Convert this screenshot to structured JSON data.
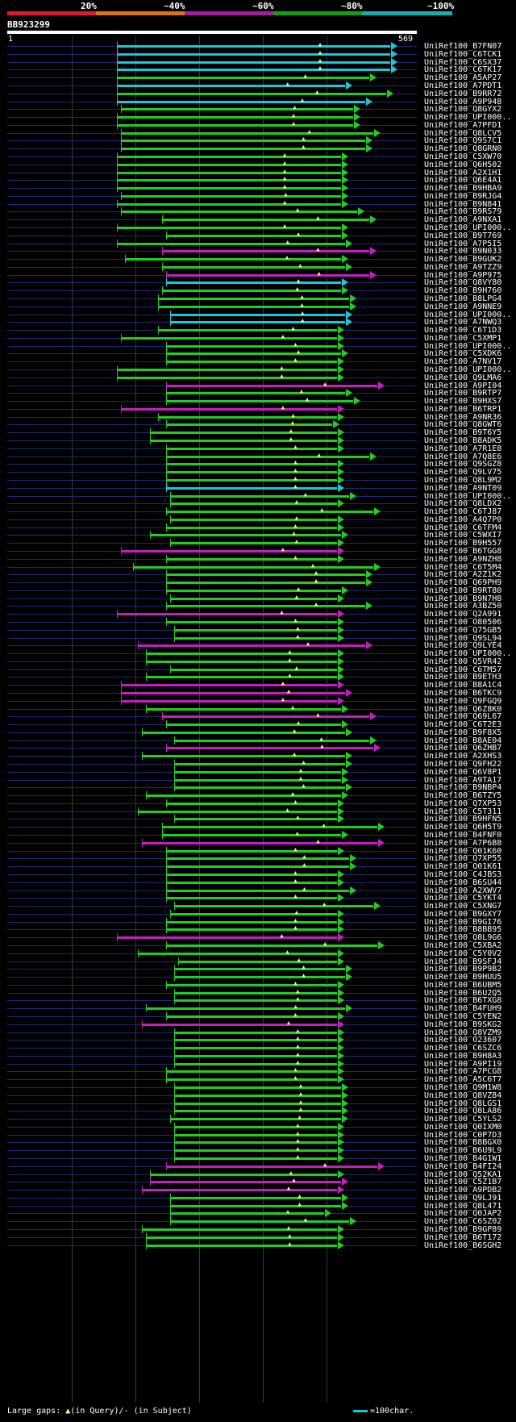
{
  "legend": {
    "labels": [
      "20%",
      "~40%",
      "~60%",
      "~80%",
      "~100%"
    ],
    "colors": [
      "#e01830",
      "#e07010",
      "#a020a0",
      "#10a010",
      "#10b0b0"
    ]
  },
  "query": {
    "name": "BB923299",
    "start": "1",
    "end": "569"
  },
  "hit_colors": {
    "cyan": "#16c8d8",
    "green": "#22cc22",
    "magenta": "#c020c0"
  },
  "hits": [
    {
      "label": "UniRef100_B7FN07",
      "color": "cyan",
      "x1": 0.27,
      "x2": 0.95
    },
    {
      "label": "UniRef100_C6TCK1",
      "color": "cyan",
      "x1": 0.27,
      "x2": 0.95
    },
    {
      "label": "UniRef100_C6SX37",
      "color": "cyan",
      "x1": 0.27,
      "x2": 0.95
    },
    {
      "label": "UniRef100_C6TK17",
      "color": "cyan",
      "x1": 0.27,
      "x2": 0.95
    },
    {
      "label": "UniRef100_A5AP27",
      "color": "green",
      "x1": 0.27,
      "x2": 0.9
    },
    {
      "label": "UniRef100_A7PDT1",
      "color": "cyan",
      "x1": 0.27,
      "x2": 0.84
    },
    {
      "label": "UniRef100_B9RR72",
      "color": "green",
      "x1": 0.27,
      "x2": 0.94
    },
    {
      "label": "UniRef100_A9P948",
      "color": "cyan",
      "x1": 0.27,
      "x2": 0.89
    },
    {
      "label": "UniRef100_Q8GYX2",
      "color": "green",
      "x1": 0.28,
      "x2": 0.86
    },
    {
      "label": "UniRef100_UPI000..",
      "color": "green",
      "x1": 0.27,
      "x2": 0.86
    },
    {
      "label": "UniRef100_A7PFD1",
      "color": "green",
      "x1": 0.27,
      "x2": 0.86
    },
    {
      "label": "UniRef100_Q8LCV5",
      "color": "green",
      "x1": 0.28,
      "x2": 0.91
    },
    {
      "label": "UniRef100_Q9S7C1",
      "color": "green",
      "x1": 0.28,
      "x2": 0.89
    },
    {
      "label": "UniRef100_Q8GRN0",
      "color": "green",
      "x1": 0.28,
      "x2": 0.89
    },
    {
      "label": "UniRef100_C5XW70",
      "color": "green",
      "x1": 0.27,
      "x2": 0.83
    },
    {
      "label": "UniRef100_Q6H502",
      "color": "green",
      "x1": 0.27,
      "x2": 0.83
    },
    {
      "label": "UniRef100_A2X1H1",
      "color": "green",
      "x1": 0.27,
      "x2": 0.83
    },
    {
      "label": "UniRef100_Q6E4A1",
      "color": "green",
      "x1": 0.27,
      "x2": 0.83
    },
    {
      "label": "UniRef100_B9HBA9",
      "color": "green",
      "x1": 0.27,
      "x2": 0.83
    },
    {
      "label": "UniRef100_B9RJG4",
      "color": "green",
      "x1": 0.28,
      "x2": 0.83
    },
    {
      "label": "UniRef100_B9N841",
      "color": "green",
      "x1": 0.27,
      "x2": 0.83
    },
    {
      "label": "UniRef100_B9RS79",
      "color": "green",
      "x1": 0.28,
      "x2": 0.87
    },
    {
      "label": "UniRef100_A9NXA1",
      "color": "green",
      "x1": 0.38,
      "x2": 0.9
    },
    {
      "label": "UniRef100_UPI000..",
      "color": "green",
      "x1": 0.27,
      "x2": 0.83
    },
    {
      "label": "UniRef100_B9T769",
      "color": "green",
      "x1": 0.39,
      "x2": 0.83
    },
    {
      "label": "UniRef100_A7P5I5",
      "color": "green",
      "x1": 0.27,
      "x2": 0.84
    },
    {
      "label": "UniRef100_B9N033",
      "color": "magenta",
      "x1": 0.38,
      "x2": 0.9
    },
    {
      "label": "UniRef100_B9GUK2",
      "color": "green",
      "x1": 0.29,
      "x2": 0.83
    },
    {
      "label": "UniRef100_A9TZZ9",
      "color": "green",
      "x1": 0.38,
      "x2": 0.84
    },
    {
      "label": "UniRef100_A9P975",
      "color": "magenta",
      "x1": 0.39,
      "x2": 0.9
    },
    {
      "label": "UniRef100_Q8VY80",
      "color": "cyan",
      "x1": 0.39,
      "x2": 0.83
    },
    {
      "label": "UniRef100_B9H760",
      "color": "green",
      "x1": 0.38,
      "x2": 0.83
    },
    {
      "label": "UniRef100_B8LPG4",
      "color": "green",
      "x1": 0.37,
      "x2": 0.85
    },
    {
      "label": "UniRef100_A9NNE9",
      "color": "green",
      "x1": 0.37,
      "x2": 0.85
    },
    {
      "label": "UniRef100_UPI000..",
      "color": "cyan",
      "x1": 0.4,
      "x2": 0.84
    },
    {
      "label": "UniRef100_A7NWQ3",
      "color": "cyan",
      "x1": 0.4,
      "x2": 0.84
    },
    {
      "label": "UniRef100_C6T1D3",
      "color": "green",
      "x1": 0.37,
      "x2": 0.82
    },
    {
      "label": "UniRef100_C5XMP1",
      "color": "green",
      "x1": 0.28,
      "x2": 0.82
    },
    {
      "label": "UniRef100_UPI000..",
      "color": "green",
      "x1": 0.39,
      "x2": 0.82
    },
    {
      "label": "UniRef100_C5XDK6",
      "color": "green",
      "x1": 0.39,
      "x2": 0.83
    },
    {
      "label": "UniRef100_A7NV17",
      "color": "green",
      "x1": 0.39,
      "x2": 0.82
    },
    {
      "label": "UniRef100_UPI000..",
      "color": "green",
      "x1": 0.27,
      "x2": 0.82
    },
    {
      "label": "UniRef100_Q9LMA6",
      "color": "green",
      "x1": 0.27,
      "x2": 0.82
    },
    {
      "label": "UniRef100_A9PI04",
      "color": "magenta",
      "x1": 0.39,
      "x2": 0.92
    },
    {
      "label": "UniRef100_B9RTP7",
      "color": "green",
      "x1": 0.39,
      "x2": 0.84
    },
    {
      "label": "UniRef100_B9HXS7",
      "color": "green",
      "x1": 0.39,
      "x2": 0.86
    },
    {
      "label": "UniRef100_B6TRP1",
      "color": "magenta",
      "x1": 0.28,
      "x2": 0.82
    },
    {
      "label": "UniRef100_A9NR36",
      "color": "green",
      "x1": 0.37,
      "x2": 0.82
    },
    {
      "label": "UniRef100_Q8GWT6",
      "color": "green",
      "x1": 0.39,
      "x2": 0.81
    },
    {
      "label": "UniRef100_B9T6Y5",
      "color": "green",
      "x1": 0.35,
      "x2": 0.82
    },
    {
      "label": "UniRef100_B8ADK5",
      "color": "green",
      "x1": 0.35,
      "x2": 0.82
    },
    {
      "label": "UniRef100_A7R1E8",
      "color": "green",
      "x1": 0.39,
      "x2": 0.82
    },
    {
      "label": "UniRef100_A7Q8E6",
      "color": "green",
      "x1": 0.39,
      "x2": 0.9
    },
    {
      "label": "UniRef100_Q9SGZ8",
      "color": "green",
      "x1": 0.39,
      "x2": 0.82
    },
    {
      "label": "UniRef100_Q9LV75",
      "color": "green",
      "x1": 0.39,
      "x2": 0.82
    },
    {
      "label": "UniRef100_Q8L9M2",
      "color": "green",
      "x1": 0.39,
      "x2": 0.82
    },
    {
      "label": "UniRef100_A9NT09",
      "color": "cyan",
      "x1": 0.39,
      "x2": 0.82
    },
    {
      "label": "UniRef100_UPI000..",
      "color": "green",
      "x1": 0.4,
      "x2": 0.85
    },
    {
      "label": "UniRef100_Q8LDX2",
      "color": "green",
      "x1": 0.4,
      "x2": 0.82
    },
    {
      "label": "UniRef100_C6TJ87",
      "color": "green",
      "x1": 0.39,
      "x2": 0.91
    },
    {
      "label": "UniRef100_A4Q7P0",
      "color": "green",
      "x1": 0.4,
      "x2": 0.82
    },
    {
      "label": "UniRef100_C6TFM4",
      "color": "green",
      "x1": 0.39,
      "x2": 0.82
    },
    {
      "label": "UniRef100_C5WXI7",
      "color": "green",
      "x1": 0.35,
      "x2": 0.83
    },
    {
      "label": "UniRef100_B9H557",
      "color": "green",
      "x1": 0.4,
      "x2": 0.82
    },
    {
      "label": "UniRef100_B6TGG8",
      "color": "magenta",
      "x1": 0.28,
      "x2": 0.82
    },
    {
      "label": "UniRef100_A9NZH8",
      "color": "green",
      "x1": 0.39,
      "x2": 0.82
    },
    {
      "label": "UniRef100_C6T5M4",
      "color": "green",
      "x1": 0.31,
      "x2": 0.91
    },
    {
      "label": "UniRef100_A2Z1K2",
      "color": "green",
      "x1": 0.39,
      "x2": 0.89
    },
    {
      "label": "UniRef100_Q69PH9",
      "color": "green",
      "x1": 0.39,
      "x2": 0.89
    },
    {
      "label": "UniRef100_B9RT80",
      "color": "green",
      "x1": 0.39,
      "x2": 0.83
    },
    {
      "label": "UniRef100_B9N7H8",
      "color": "green",
      "x1": 0.4,
      "x2": 0.82
    },
    {
      "label": "UniRef100_A3BZ50",
      "color": "green",
      "x1": 0.39,
      "x2": 0.89
    },
    {
      "label": "UniRef100_Q2A991",
      "color": "magenta",
      "x1": 0.27,
      "x2": 0.82
    },
    {
      "label": "UniRef100_O80506",
      "color": "green",
      "x1": 0.39,
      "x2": 0.82
    },
    {
      "label": "UniRef100_Q75GB5",
      "color": "green",
      "x1": 0.41,
      "x2": 0.82
    },
    {
      "label": "UniRef100_Q9SL94",
      "color": "green",
      "x1": 0.41,
      "x2": 0.82
    },
    {
      "label": "UniRef100_Q9LYE4",
      "color": "magenta",
      "x1": 0.32,
      "x2": 0.89
    },
    {
      "label": "UniRef100_UPI000..",
      "color": "green",
      "x1": 0.34,
      "x2": 0.82
    },
    {
      "label": "UniRef100_Q5VR42",
      "color": "green",
      "x1": 0.34,
      "x2": 0.82
    },
    {
      "label": "UniRef100_C6TM57",
      "color": "green",
      "x1": 0.4,
      "x2": 0.82
    },
    {
      "label": "UniRef100_B9ETH3",
      "color": "green",
      "x1": 0.34,
      "x2": 0.82
    },
    {
      "label": "UniRef100_B8A1C4",
      "color": "magenta",
      "x1": 0.28,
      "x2": 0.82
    },
    {
      "label": "UniRef100_B6TKC9",
      "color": "magenta",
      "x1": 0.28,
      "x2": 0.84
    },
    {
      "label": "UniRef100_Q9FGQ9",
      "color": "magenta",
      "x1": 0.28,
      "x2": 0.82
    },
    {
      "label": "UniRef100_Q6Z8K0",
      "color": "green",
      "x1": 0.34,
      "x2": 0.83
    },
    {
      "label": "UniRef100_Q69L67",
      "color": "magenta",
      "x1": 0.38,
      "x2": 0.9
    },
    {
      "label": "UniRef100_C6T2E3",
      "color": "green",
      "x1": 0.39,
      "x2": 0.83
    },
    {
      "label": "UniRef100_B9F8X5",
      "color": "green",
      "x1": 0.33,
      "x2": 0.84
    },
    {
      "label": "UniRef100_B8AE04",
      "color": "green",
      "x1": 0.41,
      "x2": 0.9
    },
    {
      "label": "UniRef100_Q6ZHB7",
      "color": "magenta",
      "x1": 0.39,
      "x2": 0.91
    },
    {
      "label": "UniRef100_A2XHS3",
      "color": "green",
      "x1": 0.33,
      "x2": 0.84
    },
    {
      "label": "UniRef100_Q9FH22",
      "color": "green",
      "x1": 0.41,
      "x2": 0.84
    },
    {
      "label": "UniRef100_Q6V8P1",
      "color": "green",
      "x1": 0.41,
      "x2": 0.83
    },
    {
      "label": "UniRef100_A9TA17",
      "color": "green",
      "x1": 0.41,
      "x2": 0.83
    },
    {
      "label": "UniRef100_B9NBP4",
      "color": "green",
      "x1": 0.41,
      "x2": 0.84
    },
    {
      "label": "UniRef100_B6TZY5",
      "color": "green",
      "x1": 0.34,
      "x2": 0.83
    },
    {
      "label": "UniRef100_Q7XP53",
      "color": "green",
      "x1": 0.39,
      "x2": 0.82
    },
    {
      "label": "UniRef100_C5T311",
      "color": "green",
      "x1": 0.32,
      "x2": 0.82
    },
    {
      "label": "UniRef100_B9HFN5",
      "color": "green",
      "x1": 0.41,
      "x2": 0.82
    },
    {
      "label": "UniRef100_Q6H5T9",
      "color": "green",
      "x1": 0.38,
      "x2": 0.92
    },
    {
      "label": "UniRef100_B4FNF0",
      "color": "green",
      "x1": 0.38,
      "x2": 0.83
    },
    {
      "label": "UniRef100_A7P6B8",
      "color": "magenta",
      "x1": 0.33,
      "x2": 0.92
    },
    {
      "label": "UniRef100_Q01K60",
      "color": "green",
      "x1": 0.39,
      "x2": 0.82
    },
    {
      "label": "UniRef100_Q7XP55",
      "color": "green",
      "x1": 0.39,
      "x2": 0.85
    },
    {
      "label": "UniRef100_Q01K61",
      "color": "green",
      "x1": 0.39,
      "x2": 0.85
    },
    {
      "label": "UniRef100_C4JBS3",
      "color": "green",
      "x1": 0.39,
      "x2": 0.82
    },
    {
      "label": "UniRef100_B6SU44",
      "color": "green",
      "x1": 0.39,
      "x2": 0.82
    },
    {
      "label": "UniRef100_A2XWV7",
      "color": "green",
      "x1": 0.39,
      "x2": 0.85
    },
    {
      "label": "UniRef100_C5YKT4",
      "color": "green",
      "x1": 0.39,
      "x2": 0.82
    },
    {
      "label": "UniRef100_C5XNG7",
      "color": "green",
      "x1": 0.41,
      "x2": 0.91
    },
    {
      "label": "UniRef100_B9GXY7",
      "color": "green",
      "x1": 0.4,
      "x2": 0.82
    },
    {
      "label": "UniRef100_B9GI76",
      "color": "green",
      "x1": 0.39,
      "x2": 0.82
    },
    {
      "label": "UniRef100_B8BB95",
      "color": "green",
      "x1": 0.39,
      "x2": 0.82
    },
    {
      "label": "UniRef100_Q8L9G6",
      "color": "magenta",
      "x1": 0.27,
      "x2": 0.82
    },
    {
      "label": "UniRef100_C5XBA2",
      "color": "green",
      "x1": 0.39,
      "x2": 0.92
    },
    {
      "label": "UniRef100_C5Y0V2",
      "color": "green",
      "x1": 0.32,
      "x2": 0.82
    },
    {
      "label": "UniRef100_B9SFJ4",
      "color": "green",
      "x1": 0.42,
      "x2": 0.82
    },
    {
      "label": "UniRef100_B9P9B2",
      "color": "green",
      "x1": 0.41,
      "x2": 0.84
    },
    {
      "label": "UniRef100_B9HUU5",
      "color": "green",
      "x1": 0.41,
      "x2": 0.84
    },
    {
      "label": "UniRef100_B6UBM5",
      "color": "green",
      "x1": 0.39,
      "x2": 0.82
    },
    {
      "label": "UniRef100_B6U2Q5",
      "color": "green",
      "x1": 0.41,
      "x2": 0.82
    },
    {
      "label": "UniRef100_B6TXG8",
      "color": "green",
      "x1": 0.41,
      "x2": 0.82
    },
    {
      "label": "UniRef100_B4FUH9",
      "color": "green",
      "x1": 0.34,
      "x2": 0.84
    },
    {
      "label": "UniRef100_C5YEN2",
      "color": "green",
      "x1": 0.39,
      "x2": 0.82
    },
    {
      "label": "UniRef100_B9SKG2",
      "color": "magenta",
      "x1": 0.33,
      "x2": 0.82
    },
    {
      "label": "UniRef100_Q8VZM9",
      "color": "green",
      "x1": 0.41,
      "x2": 0.82
    },
    {
      "label": "UniRef100_O23607",
      "color": "green",
      "x1": 0.41,
      "x2": 0.82
    },
    {
      "label": "UniRef100_C6SZC6",
      "color": "green",
      "x1": 0.41,
      "x2": 0.82
    },
    {
      "label": "UniRef100_B9H8A3",
      "color": "green",
      "x1": 0.41,
      "x2": 0.82
    },
    {
      "label": "UniRef100_A9PI19",
      "color": "green",
      "x1": 0.41,
      "x2": 0.82
    },
    {
      "label": "UniRef100_A7PCG8",
      "color": "green",
      "x1": 0.39,
      "x2": 0.82
    },
    {
      "label": "UniRef100_A5C6T7",
      "color": "green",
      "x1": 0.39,
      "x2": 0.82
    },
    {
      "label": "UniRef100_Q9M1W8",
      "color": "green",
      "x1": 0.41,
      "x2": 0.83
    },
    {
      "label": "UniRef100_Q8VZ84",
      "color": "green",
      "x1": 0.41,
      "x2": 0.83
    },
    {
      "label": "UniRef100_Q8LGS1",
      "color": "green",
      "x1": 0.41,
      "x2": 0.83
    },
    {
      "label": "UniRef100_Q8LA86",
      "color": "green",
      "x1": 0.41,
      "x2": 0.83
    },
    {
      "label": "UniRef100_C5YLS2",
      "color": "green",
      "x1": 0.4,
      "x2": 0.83
    },
    {
      "label": "UniRef100_Q0IXM0",
      "color": "green",
      "x1": 0.41,
      "x2": 0.82
    },
    {
      "label": "UniRef100_C0P7D3",
      "color": "green",
      "x1": 0.41,
      "x2": 0.82
    },
    {
      "label": "UniRef100_B8BGX0",
      "color": "green",
      "x1": 0.41,
      "x2": 0.82
    },
    {
      "label": "UniRef100_B6U9L9",
      "color": "green",
      "x1": 0.41,
      "x2": 0.82
    },
    {
      "label": "UniRef100_B4G1W1",
      "color": "green",
      "x1": 0.41,
      "x2": 0.82
    },
    {
      "label": "UniRef100_B4FI24",
      "color": "magenta",
      "x1": 0.39,
      "x2": 0.92
    },
    {
      "label": "UniRef100_Q52KA1",
      "color": "green",
      "x1": 0.35,
      "x2": 0.82
    },
    {
      "label": "UniRef100_C5Z1B7",
      "color": "magenta",
      "x1": 0.35,
      "x2": 0.83
    },
    {
      "label": "UniRef100_A9PDB2",
      "color": "magenta",
      "x1": 0.33,
      "x2": 0.82
    },
    {
      "label": "UniRef100_Q9LJ91",
      "color": "green",
      "x1": 0.4,
      "x2": 0.83
    },
    {
      "label": "UniRef100_Q8L471",
      "color": "green",
      "x1": 0.4,
      "x2": 0.83
    },
    {
      "label": "UniRef100_Q0JAP2",
      "color": "green",
      "x1": 0.4,
      "x2": 0.79
    },
    {
      "label": "UniRef100_C6SZ02",
      "color": "green",
      "x1": 0.4,
      "x2": 0.85
    },
    {
      "label": "UniRef100_B9GP89",
      "color": "green",
      "x1": 0.33,
      "x2": 0.82
    },
    {
      "label": "UniRef100_B6T172",
      "color": "green",
      "x1": 0.34,
      "x2": 0.82
    },
    {
      "label": "UniRef100_B6SGH2",
      "color": "green",
      "x1": 0.34,
      "x2": 0.82
    }
  ],
  "footer": {
    "gaps_prefix": "Large gaps:",
    "gaps_query": "(in Query)/",
    "gaps_subject": "- (in Subject)",
    "gaps_triangle": "▲",
    "scale_text": "=100char."
  }
}
